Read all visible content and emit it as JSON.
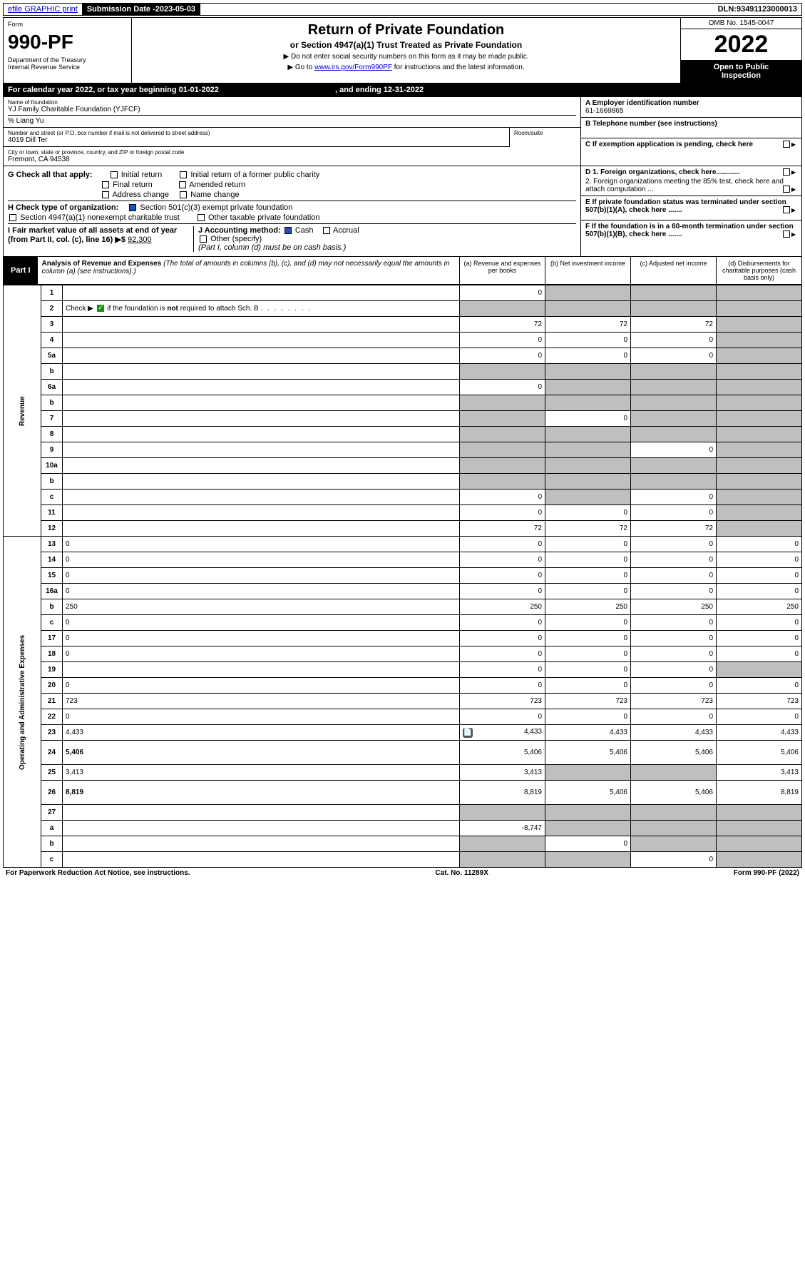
{
  "topbar": {
    "efile": "efile GRAPHIC print",
    "subdate_label": "Submission Date - ",
    "subdate": "2023-05-03",
    "dln_label": "DLN: ",
    "dln": "93491123000013"
  },
  "header": {
    "form_word": "Form",
    "form_num": "990-PF",
    "dept": "Department of the Treasury",
    "irs": "Internal Revenue Service",
    "title": "Return of Private Foundation",
    "subtitle": "or Section 4947(a)(1) Trust Treated as Private Foundation",
    "instr1": "▶ Do not enter social security numbers on this form as it may be made public.",
    "instr2_pre": "▶ Go to ",
    "instr2_link": "www.irs.gov/Form990PF",
    "instr2_post": " for instructions and the latest information.",
    "omb": "OMB No. 1545-0047",
    "year": "2022",
    "inspect1": "Open to Public",
    "inspect2": "Inspection"
  },
  "calendar": {
    "text": "For calendar year 2022, or tax year beginning 01-01-2022",
    "end": ", and ending 12-31-2022"
  },
  "info": {
    "name_lbl": "Name of foundation",
    "name": "YJ Family Charitable Foundation (YJFCF)",
    "pct_lbl": "% Liang Yu",
    "addr_lbl": "Number and street (or P.O. box number if mail is not delivered to street address)",
    "addr": "4019 Dill Ter",
    "room_lbl": "Room/suite",
    "city_lbl": "City or town, state or province, country, and ZIP or foreign postal code",
    "city": "Fremont, CA  94538",
    "a_lbl": "A Employer identification number",
    "a_val": "61-1669865",
    "b_lbl": "B Telephone number (see instructions)",
    "c_lbl": "C If exemption application is pending, check here",
    "d1": "D 1. Foreign organizations, check here............",
    "d2": "2. Foreign organizations meeting the 85% test, check here and attach computation ...",
    "e_lbl": "E  If private foundation status was terminated under section 507(b)(1)(A), check here .......",
    "f_lbl": "F  If the foundation is in a 60-month termination under section 507(b)(1)(B), check here .......",
    "g_lbl": "G Check all that apply:",
    "g_opts": [
      "Initial return",
      "Final return",
      "Address change",
      "Initial return of a former public charity",
      "Amended return",
      "Name change"
    ],
    "h_lbl": "H Check type of organization:",
    "h1": "Section 501(c)(3) exempt private foundation",
    "h2": "Section 4947(a)(1) nonexempt charitable trust",
    "h3": "Other taxable private foundation",
    "i_lbl": "I Fair market value of all assets at end of year (from Part II, col. (c), line 16) ▶$ ",
    "i_val": "92,300",
    "j_lbl": "J Accounting method:",
    "j_cash": "Cash",
    "j_accrual": "Accrual",
    "j_other": "Other (specify)",
    "j_note": "(Part I, column (d) must be on cash basis.)"
  },
  "part1": {
    "tag": "Part I",
    "title": "Analysis of Revenue and Expenses",
    "note": " (The total of amounts in columns (b), (c), and (d) may not necessarily equal the amounts in column (a) (see instructions).)",
    "col_a": "(a)  Revenue and expenses per books",
    "col_b": "(b)  Net investment income",
    "col_c": "(c)  Adjusted net income",
    "col_d": "(d)  Disbursements for charitable purposes (cash basis only)"
  },
  "side": {
    "rev": "Revenue",
    "exp": "Operating and Administrative Expenses"
  },
  "rows": [
    {
      "n": "1",
      "d": "",
      "a": "0",
      "b": "",
      "c": "",
      "sb": true,
      "sc": true,
      "sd": true
    },
    {
      "n": "2",
      "d": "",
      "a": "",
      "b": "",
      "c": "",
      "sa": true,
      "sb": true,
      "sc": true,
      "sd": true,
      "green": true
    },
    {
      "n": "3",
      "d": "",
      "a": "72",
      "b": "72",
      "c": "72",
      "sd": true
    },
    {
      "n": "4",
      "d": "",
      "a": "0",
      "b": "0",
      "c": "0",
      "sd": true
    },
    {
      "n": "5a",
      "d": "",
      "a": "0",
      "b": "0",
      "c": "0",
      "sd": true
    },
    {
      "n": "b",
      "d": "",
      "a": "",
      "b": "",
      "c": "",
      "sa": true,
      "sb": true,
      "sc": true,
      "sd": true
    },
    {
      "n": "6a",
      "d": "",
      "a": "0",
      "b": "",
      "c": "",
      "sb": true,
      "sc": true,
      "sd": true
    },
    {
      "n": "b",
      "d": "",
      "a": "",
      "b": "",
      "c": "",
      "sa": true,
      "sb": true,
      "sc": true,
      "sd": true
    },
    {
      "n": "7",
      "d": "",
      "a": "",
      "b": "0",
      "c": "",
      "sa": true,
      "sc": true,
      "sd": true
    },
    {
      "n": "8",
      "d": "",
      "a": "",
      "b": "",
      "c": "",
      "sa": true,
      "sb": true,
      "sc": true,
      "sd": true
    },
    {
      "n": "9",
      "d": "",
      "a": "",
      "b": "",
      "c": "0",
      "sa": true,
      "sb": true,
      "sd": true
    },
    {
      "n": "10a",
      "d": "",
      "a": "",
      "b": "",
      "c": "",
      "sa": true,
      "sb": true,
      "sc": true,
      "sd": true
    },
    {
      "n": "b",
      "d": "",
      "a": "",
      "b": "",
      "c": "",
      "sa": true,
      "sb": true,
      "sc": true,
      "sd": true
    },
    {
      "n": "c",
      "d": "",
      "a": "0",
      "b": "",
      "c": "0",
      "sb": true,
      "sd": true
    },
    {
      "n": "11",
      "d": "",
      "a": "0",
      "b": "0",
      "c": "0",
      "sd": true
    },
    {
      "n": "12",
      "d": "",
      "a": "72",
      "b": "72",
      "c": "72",
      "sd": true,
      "bold": true
    },
    {
      "n": "13",
      "d": "0",
      "a": "0",
      "b": "0",
      "c": "0"
    },
    {
      "n": "14",
      "d": "0",
      "a": "0",
      "b": "0",
      "c": "0"
    },
    {
      "n": "15",
      "d": "0",
      "a": "0",
      "b": "0",
      "c": "0"
    },
    {
      "n": "16a",
      "d": "0",
      "a": "0",
      "b": "0",
      "c": "0"
    },
    {
      "n": "b",
      "d": "250",
      "a": "250",
      "b": "250",
      "c": "250"
    },
    {
      "n": "c",
      "d": "0",
      "a": "0",
      "b": "0",
      "c": "0"
    },
    {
      "n": "17",
      "d": "0",
      "a": "0",
      "b": "0",
      "c": "0"
    },
    {
      "n": "18",
      "d": "0",
      "a": "0",
      "b": "0",
      "c": "0"
    },
    {
      "n": "19",
      "d": "",
      "a": "0",
      "b": "0",
      "c": "0",
      "sd": true
    },
    {
      "n": "20",
      "d": "0",
      "a": "0",
      "b": "0",
      "c": "0"
    },
    {
      "n": "21",
      "d": "723",
      "a": "723",
      "b": "723",
      "c": "723"
    },
    {
      "n": "22",
      "d": "0",
      "a": "0",
      "b": "0",
      "c": "0"
    },
    {
      "n": "23",
      "d": "4,433",
      "a": "4,433",
      "b": "4,433",
      "c": "4,433",
      "clip": true
    },
    {
      "n": "24",
      "d": "5,406",
      "a": "5,406",
      "b": "5,406",
      "c": "5,406",
      "bold": true,
      "tall": true
    },
    {
      "n": "25",
      "d": "3,413",
      "a": "3,413",
      "b": "",
      "c": "",
      "sb": true,
      "sc": true
    },
    {
      "n": "26",
      "d": "8,819",
      "a": "8,819",
      "b": "5,406",
      "c": "5,406",
      "bold": true,
      "tall": true
    },
    {
      "n": "27",
      "d": "",
      "a": "",
      "b": "",
      "c": "",
      "sa": true,
      "sb": true,
      "sc": true,
      "sd": true
    },
    {
      "n": "a",
      "d": "",
      "a": "-8,747",
      "b": "",
      "c": "",
      "sb": true,
      "sc": true,
      "sd": true,
      "bold": true
    },
    {
      "n": "b",
      "d": "",
      "a": "",
      "b": "0",
      "c": "",
      "sa": true,
      "sc": true,
      "sd": true,
      "bold": true
    },
    {
      "n": "c",
      "d": "",
      "a": "",
      "b": "",
      "c": "0",
      "sa": true,
      "sb": true,
      "sd": true,
      "bold": true
    }
  ],
  "footer": {
    "left": "For Paperwork Reduction Act Notice, see instructions.",
    "mid": "Cat. No. 11289X",
    "right": "Form 990-PF (2022)"
  }
}
